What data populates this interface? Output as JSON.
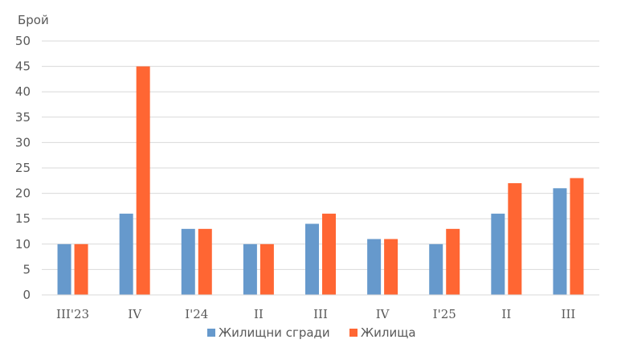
{
  "chart_data": {
    "type": "bar",
    "ylabel": "Брой",
    "ylim": [
      0,
      50
    ],
    "yticks": [
      0,
      5,
      10,
      15,
      20,
      25,
      30,
      35,
      40,
      45,
      50
    ],
    "grid": true,
    "legend_position": "bottom",
    "categories": [
      "III'23",
      "IV",
      "I'24",
      "II",
      "III",
      "IV",
      "I'25",
      "II",
      "III"
    ],
    "series": [
      {
        "name": "Жилищни сгради",
        "color": "#6699CC",
        "values": [
          10,
          16,
          13,
          10,
          14,
          11,
          10,
          16,
          21
        ]
      },
      {
        "name": "Жилища",
        "color": "#FF6633",
        "values": [
          10,
          45,
          13,
          10,
          16,
          11,
          13,
          22,
          23
        ]
      }
    ]
  }
}
